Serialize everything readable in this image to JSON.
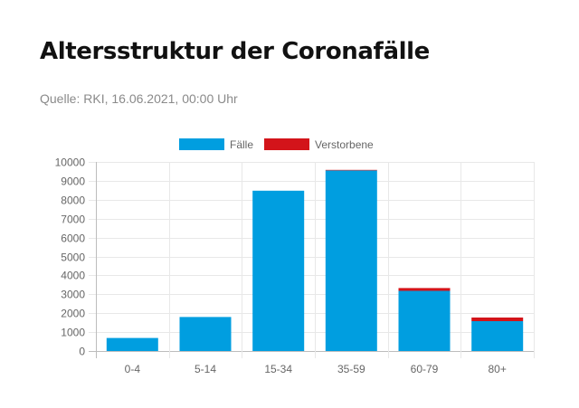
{
  "header": {
    "title": "Altersstruktur der Coronafälle",
    "source": "Quelle: RKI, 16.06.2021, 00:00 Uhr"
  },
  "colors": {
    "faelle": "#009ee0",
    "verstorbene": "#d3141a",
    "grid": "#e8e8e8",
    "axis": "#bdbdbd"
  },
  "chart_data": {
    "type": "bar",
    "stacked": true,
    "categories": [
      "0-4",
      "5-14",
      "15-34",
      "35-59",
      "60-79",
      "80+"
    ],
    "series": [
      {
        "name": "Fälle",
        "color": "#009ee0",
        "values": [
          690,
          1800,
          8480,
          9550,
          3180,
          1580
        ]
      },
      {
        "name": "Verstorbene",
        "color": "#d3141a",
        "values": [
          0,
          0,
          0,
          30,
          150,
          190
        ]
      }
    ],
    "yticks": [
      0,
      1000,
      2000,
      3000,
      4000,
      5000,
      6000,
      7000,
      8000,
      9000,
      10000
    ],
    "ylim": [
      0,
      10000
    ],
    "legend": "top",
    "grid": true
  }
}
